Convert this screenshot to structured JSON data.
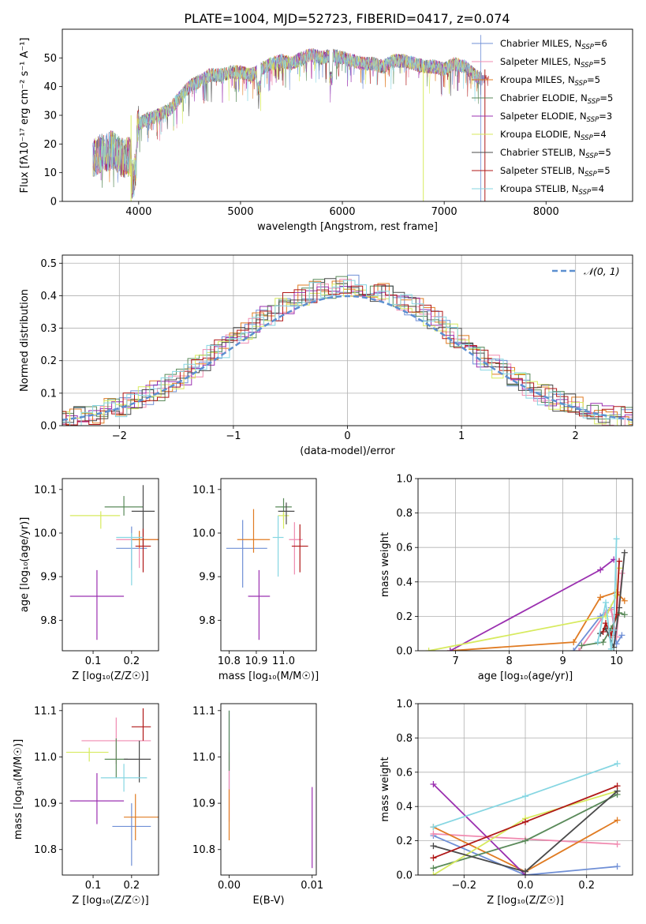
{
  "title": "PLATE=1004, MJD=52723, FIBERID=0417, z=0.074",
  "colors": [
    "#6f8fd6",
    "#f08ab0",
    "#e07b22",
    "#5a8a5a",
    "#9b30b0",
    "#d7ea5e",
    "#4a4a4a",
    "#b01818",
    "#86d6e2"
  ],
  "chart_data": [
    {
      "type": "line",
      "id": "spectrum",
      "title": "PLATE=1004, MJD=52723, FIBERID=0417, z=0.074",
      "xlabel": "wavelength [Angstrom, rest frame]",
      "ylabel": "Flux [fλ10⁻¹⁷ erg cm⁻² s⁻¹ A⁻¹]",
      "xlim": [
        3250,
        8850
      ],
      "ylim": [
        0,
        60
      ],
      "xticks": [
        "4000",
        "5000",
        "6000",
        "7000",
        "8000"
      ],
      "yticks": [
        "0",
        "10",
        "20",
        "30",
        "40",
        "50"
      ],
      "grid": false,
      "legend_position": "top-right",
      "spectrum_envelope_x": [
        3550,
        3650,
        3750,
        3850,
        3950,
        4000,
        4100,
        4200,
        4300,
        4400,
        4500,
        4600,
        4700,
        4800,
        4900,
        5000,
        5100,
        5200,
        5300,
        5400,
        5500,
        5600,
        5700,
        5800,
        5900,
        6000,
        6100,
        6200,
        6300,
        6400,
        6500,
        6600,
        6700,
        6800,
        6900,
        7000,
        7100,
        7200,
        7300,
        7400
      ],
      "spectrum_envelope_y": [
        15,
        17,
        18,
        15,
        16,
        27,
        29,
        30,
        32,
        36,
        40,
        42,
        44,
        44,
        45,
        45,
        44,
        46,
        48,
        49,
        48,
        50,
        51,
        50,
        51,
        50,
        49,
        48,
        48,
        47,
        49,
        49,
        48,
        47,
        47,
        46,
        48,
        47,
        44,
        42
      ],
      "series": [
        {
          "name": "Chabrier MILES, N",
          "sub": "SSP",
          "eq": "=6"
        },
        {
          "name": "Salpeter MILES, N",
          "sub": "SSP",
          "eq": "=5"
        },
        {
          "name": "Kroupa MILES, N",
          "sub": "SSP",
          "eq": "=5"
        },
        {
          "name": "Chabrier ELODIE, N",
          "sub": "SSP",
          "eq": "=5"
        },
        {
          "name": "Salpeter ELODIE, N",
          "sub": "SSP",
          "eq": "=3"
        },
        {
          "name": "Kroupa ELODIE, N",
          "sub": "SSP",
          "eq": "=4"
        },
        {
          "name": "Chabrier STELIB, N",
          "sub": "SSP",
          "eq": "=5"
        },
        {
          "name": "Salpeter STELIB, N",
          "sub": "SSP",
          "eq": "=5"
        },
        {
          "name": "Kroupa STELIB, N",
          "sub": "SSP",
          "eq": "=4"
        }
      ]
    },
    {
      "type": "area",
      "id": "residuals",
      "xlabel": "(data-model)/error",
      "ylabel": "Normed distribution",
      "xlim": [
        -2.5,
        2.5
      ],
      "ylim": [
        0,
        0.525
      ],
      "xticks": [
        "−2",
        "−1",
        "0",
        "1",
        "2"
      ],
      "yticks": [
        "0.0",
        "0.1",
        "0.2",
        "0.3",
        "0.4",
        "0.5"
      ],
      "grid": true,
      "legend_position": "top-right",
      "legend": "𝒩(0, 1)",
      "bin_width": 0.1
    },
    {
      "type": "scatter",
      "id": "age-vs-Z",
      "xlabel": "Z [log₁₀(Z/Z☉)]",
      "ylabel": "age  [log₁₀(age/yr)]",
      "xlim": [
        0.02,
        0.27
      ],
      "ylim": [
        9.73,
        10.125
      ],
      "xticks": [
        "0.1",
        "0.2"
      ],
      "yticks": [
        "9.8",
        "9.9",
        "10.0",
        "10.1"
      ],
      "points": [
        {
          "x": 0.2,
          "y": 9.965,
          "xerr": [
            0.04,
            0.04
          ],
          "yerr": [
            0.05,
            0.05
          ]
        },
        {
          "x": 0.22,
          "y": 9.985,
          "xerr": [
            0.06,
            0.05
          ],
          "yerr": [
            0.065,
            0.02
          ]
        },
        {
          "x": 0.22,
          "y": 9.985,
          "xerr": [
            0.02,
            0.05
          ],
          "yerr": [
            0.02,
            0.02
          ]
        },
        {
          "x": 0.18,
          "y": 10.06,
          "xerr": [
            0.05,
            0.05
          ],
          "yerr": [
            0.02,
            0.025
          ]
        },
        {
          "x": 0.11,
          "y": 9.855,
          "xerr": [
            0.07,
            0.07
          ],
          "yerr": [
            0.1,
            0.06
          ]
        },
        {
          "x": 0.12,
          "y": 10.04,
          "xerr": [
            0.08,
            0.05
          ],
          "yerr": [
            0.03,
            0.01
          ]
        },
        {
          "x": 0.23,
          "y": 10.05,
          "xerr": [
            0.03,
            0.03
          ],
          "yerr": [
            0.08,
            0.06
          ]
        },
        {
          "x": 0.23,
          "y": 9.97,
          "xerr": [
            0.02,
            0.02
          ],
          "yerr": [
            0.06,
            0.04
          ]
        },
        {
          "x": 0.2,
          "y": 9.99,
          "xerr": [
            0.04,
            0.03
          ],
          "yerr": [
            0.11,
            0.01
          ]
        }
      ]
    },
    {
      "type": "scatter",
      "id": "age-vs-mass",
      "xlabel": "mass [log₁₀(M/M☉)]",
      "ylabel": "",
      "xlim": [
        10.77,
        11.12
      ],
      "ylim": [
        9.73,
        10.125
      ],
      "xticks": [
        "10.8",
        "10.9",
        "11.0"
      ],
      "yticks": [
        "9.8",
        "9.9",
        "10.0",
        "10.1"
      ],
      "points": [
        {
          "x": 10.85,
          "y": 9.965,
          "xerr": [
            0.06,
            0.09
          ],
          "yerr": [
            0.09,
            0.065
          ]
        },
        {
          "x": 11.04,
          "y": 9.985,
          "xerr": [
            0.02,
            0.03
          ],
          "yerr": [
            0.08,
            0.04
          ]
        },
        {
          "x": 10.89,
          "y": 9.985,
          "xerr": [
            0.06,
            0.06
          ],
          "yerr": [
            0.03,
            0.07
          ]
        },
        {
          "x": 11.0,
          "y": 10.06,
          "xerr": [
            0.03,
            0.03
          ],
          "yerr": [
            0.03,
            0.02
          ]
        },
        {
          "x": 10.91,
          "y": 9.855,
          "xerr": [
            0.04,
            0.04
          ],
          "yerr": [
            0.1,
            0.06
          ]
        },
        {
          "x": 11.0,
          "y": 10.04,
          "xerr": [
            0.02,
            0.02
          ],
          "yerr": [
            0.03,
            0.01
          ]
        },
        {
          "x": 11.01,
          "y": 10.05,
          "xerr": [
            0.03,
            0.03
          ],
          "yerr": [
            0.03,
            0.02
          ]
        },
        {
          "x": 11.06,
          "y": 9.97,
          "xerr": [
            0.03,
            0.03
          ],
          "yerr": [
            0.06,
            0.05
          ]
        },
        {
          "x": 10.98,
          "y": 9.99,
          "xerr": [
            0.02,
            0.02
          ],
          "yerr": [
            0.09,
            0.05
          ]
        }
      ]
    },
    {
      "type": "line",
      "id": "mass-weight-vs-age",
      "xlabel": "age  [log₁₀(age/yr)]",
      "ylabel": "mass weight",
      "xlim": [
        6.3,
        10.3
      ],
      "ylim": [
        0,
        1.0
      ],
      "xticks": [
        "7",
        "8",
        "9",
        "10"
      ],
      "yticks": [
        "0.0",
        "0.2",
        "0.4",
        "0.6",
        "0.8",
        "1.0"
      ],
      "grid": true,
      "series": [
        {
          "x": [
            9.2,
            9.7,
            9.9,
            10.0,
            10.1
          ],
          "y": [
            0.0,
            0.2,
            0.25,
            0.04,
            0.09
          ]
        },
        {
          "x": [
            9.3,
            9.8,
            9.9,
            10.0,
            10.1
          ],
          "y": [
            0.0,
            0.22,
            0.24,
            0.08,
            0.45
          ]
        },
        {
          "x": [
            6.9,
            9.2,
            9.7,
            10.0,
            10.15
          ],
          "y": [
            0.0,
            0.05,
            0.31,
            0.34,
            0.29
          ]
        },
        {
          "x": [
            9.35,
            9.75,
            9.9,
            10.05,
            10.15
          ],
          "y": [
            0.03,
            0.05,
            0.13,
            0.22,
            0.21
          ]
        },
        {
          "x": [
            6.9,
            9.7,
            9.95
          ],
          "y": [
            0.0,
            0.47,
            0.53
          ]
        },
        {
          "x": [
            6.5,
            9.8,
            10.0,
            10.05
          ],
          "y": [
            0.0,
            0.2,
            0.32,
            0.48
          ]
        },
        {
          "x": [
            9.7,
            9.8,
            9.95,
            10.05,
            10.15
          ],
          "y": [
            0.1,
            0.13,
            0.02,
            0.25,
            0.57
          ]
        },
        {
          "x": [
            9.75,
            9.8,
            9.9,
            10.0,
            10.05
          ],
          "y": [
            0.11,
            0.16,
            0.09,
            0.21,
            0.52
          ]
        },
        {
          "x": [
            9.65,
            9.8,
            9.9,
            9.95,
            10.0
          ],
          "y": [
            0.05,
            0.28,
            0.01,
            0.12,
            0.65
          ]
        }
      ]
    },
    {
      "type": "scatter",
      "id": "mass-vs-Z",
      "xlabel": "Z [log₁₀(Z/Z☉)]",
      "ylabel": "mass [log₁₀(M/M☉)]",
      "xlim": [
        0.02,
        0.27
      ],
      "ylim": [
        10.745,
        11.115
      ],
      "xticks": [
        "0.1",
        "0.2"
      ],
      "yticks": [
        "10.8",
        "10.9",
        "11.0",
        "11.1"
      ],
      "points": [
        {
          "x": 0.2,
          "y": 10.85,
          "xerr": [
            0.05,
            0.05
          ],
          "yerr": [
            0.085,
            0.05
          ]
        },
        {
          "x": 0.16,
          "y": 11.035,
          "xerr": [
            0.09,
            0.09
          ],
          "yerr": [
            0.05,
            0.05
          ]
        },
        {
          "x": 0.21,
          "y": 10.87,
          "xerr": [
            0.03,
            0.06
          ],
          "yerr": [
            0.05,
            0.05
          ]
        },
        {
          "x": 0.16,
          "y": 10.995,
          "xerr": [
            0.03,
            0.03
          ],
          "yerr": [
            0.04,
            0.045
          ]
        },
        {
          "x": 0.11,
          "y": 10.905,
          "xerr": [
            0.07,
            0.07
          ],
          "yerr": [
            0.05,
            0.06
          ]
        },
        {
          "x": 0.09,
          "y": 11.01,
          "xerr": [
            0.06,
            0.05
          ],
          "yerr": [
            0.02,
            0.01
          ]
        },
        {
          "x": 0.22,
          "y": 10.995,
          "xerr": [
            0.04,
            0.03
          ],
          "yerr": [
            0.05,
            0.04
          ]
        },
        {
          "x": 0.23,
          "y": 11.065,
          "xerr": [
            0.03,
            0.02
          ],
          "yerr": [
            0.03,
            0.04
          ]
        },
        {
          "x": 0.18,
          "y": 10.955,
          "xerr": [
            0.06,
            0.06
          ],
          "yerr": [
            0.03,
            0.03
          ]
        }
      ]
    },
    {
      "type": "scatter",
      "id": "mass-vs-ebv",
      "xlabel": "E(B-V)",
      "ylabel": "",
      "xlim": [
        -0.001,
        0.0105
      ],
      "ylim": [
        10.745,
        11.115
      ],
      "xticks": [
        "0.00",
        "0.01"
      ],
      "yticks": [
        "10.8",
        "10.9",
        "11.0",
        "11.1"
      ],
      "points": [
        {
          "x": 0.0,
          "y": 11.05,
          "yerr": [
            0.12,
            0.05
          ]
        },
        {
          "x": 0.0,
          "y": 10.97,
          "yerr": [
            0.11,
            0.04
          ]
        },
        {
          "x": 0.0,
          "y": 10.9,
          "yerr": [
            0.08,
            0.03
          ]
        },
        {
          "x": 0.0,
          "y": 11.03,
          "yerr": [
            0.06,
            0.07
          ]
        },
        {
          "x": 0.01,
          "y": 10.85,
          "yerr": [
            0.09,
            0.085
          ]
        }
      ]
    },
    {
      "type": "line",
      "id": "mass-weight-vs-Z",
      "xlabel": "Z [log₁₀(Z/Z☉)]",
      "ylabel": "mass weight",
      "xlim": [
        -0.35,
        0.35
      ],
      "ylim": [
        0,
        1.0
      ],
      "xticks": [
        "−0.2",
        "0.0",
        "0.2"
      ],
      "yticks": [
        "0.0",
        "0.2",
        "0.4",
        "0.6",
        "0.8",
        "1.0"
      ],
      "grid": true,
      "series": [
        {
          "x": [
            -0.3,
            0.0,
            0.3
          ],
          "y": [
            0.23,
            0.0,
            0.05
          ]
        },
        {
          "x": [
            -0.3,
            0.0,
            0.3
          ],
          "y": [
            0.24,
            0.21,
            0.18
          ]
        },
        {
          "x": [
            -0.3,
            0.0,
            0.3
          ],
          "y": [
            0.28,
            0.02,
            0.32
          ]
        },
        {
          "x": [
            -0.3,
            0.0,
            0.3
          ],
          "y": [
            0.04,
            0.2,
            0.47
          ]
        },
        {
          "x": [
            -0.3,
            0.0
          ],
          "y": [
            0.53,
            0.0
          ]
        },
        {
          "x": [
            -0.3,
            0.0,
            0.3
          ],
          "y": [
            0.0,
            0.33,
            0.49
          ]
        },
        {
          "x": [
            -0.3,
            0.0,
            0.3
          ],
          "y": [
            0.17,
            0.02,
            0.49
          ]
        },
        {
          "x": [
            -0.3,
            0.0,
            0.3
          ],
          "y": [
            0.1,
            0.31,
            0.52
          ]
        },
        {
          "x": [
            -0.3,
            0.0,
            0.3
          ],
          "y": [
            0.28,
            0.46,
            0.65
          ]
        }
      ]
    }
  ]
}
